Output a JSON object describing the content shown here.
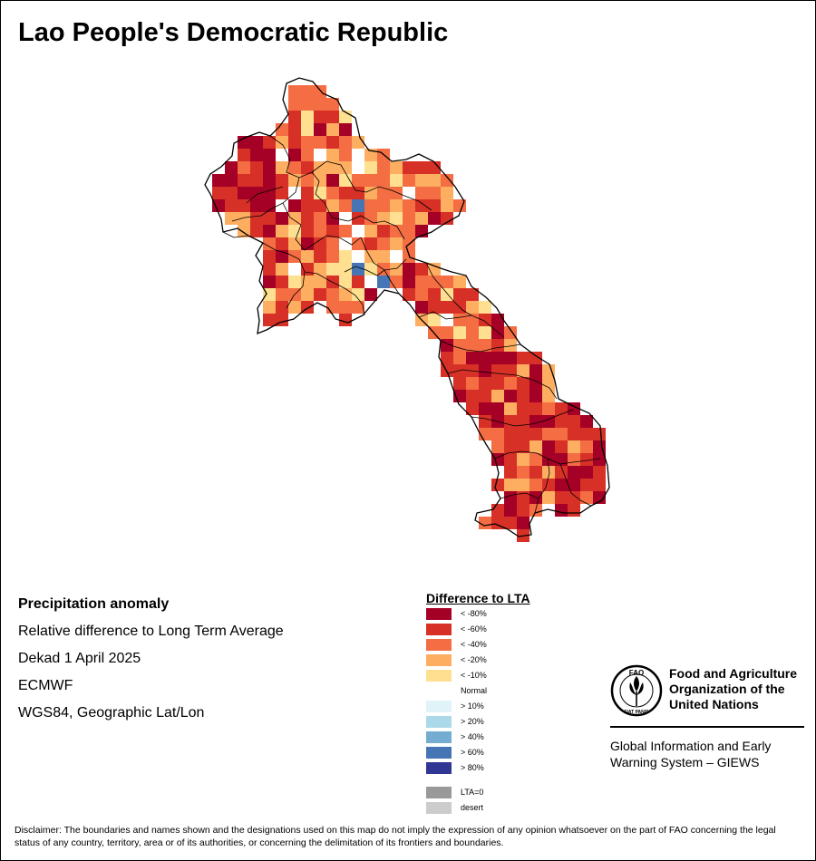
{
  "title": "Lao People's Democratic Republic",
  "info": {
    "heading": "Precipitation anomaly",
    "line1": "Relative difference to Long Term Average",
    "line2": "Dekad 1 April 2025",
    "line3": "ECMWF",
    "line4": "WGS84, Geographic Lat/Lon"
  },
  "legend": {
    "title": "Difference to LTA",
    "classes": [
      {
        "label": "< -80%",
        "color": "#a50026"
      },
      {
        "label": "< -60%",
        "color": "#d73027"
      },
      {
        "label": "< -40%",
        "color": "#f46d43"
      },
      {
        "label": "< -20%",
        "color": "#fdae61"
      },
      {
        "label": "< -10%",
        "color": "#fee090"
      },
      {
        "label": "Normal",
        "color": "#ffffff"
      },
      {
        "label": "> 10%",
        "color": "#e0f3f8"
      },
      {
        "label": "> 20%",
        "color": "#abd9e9"
      },
      {
        "label": "> 40%",
        "color": "#74add1"
      },
      {
        "label": "> 60%",
        "color": "#4575b4"
      },
      {
        "label": "> 80%",
        "color": "#313695"
      }
    ],
    "extra": [
      {
        "label": "LTA=0",
        "color": "#999999"
      },
      {
        "label": "desert",
        "color": "#cccccc"
      }
    ]
  },
  "org": {
    "name": "Food and Agriculture Organization of the United Nations",
    "system": "Global Information and Early Warning System – GIEWS",
    "logo_text": "FAO",
    "logo_motto": "FIAT PANIS"
  },
  "disclaimer": "Disclaimer: The boundaries and names shown and the designations used on this map do not imply the expression of any opinion whatsoever on the part of FAO concerning the legal status of any country, territory, area or of its authorities, or concerning the delimitation of its frontiers and boundaries."
}
